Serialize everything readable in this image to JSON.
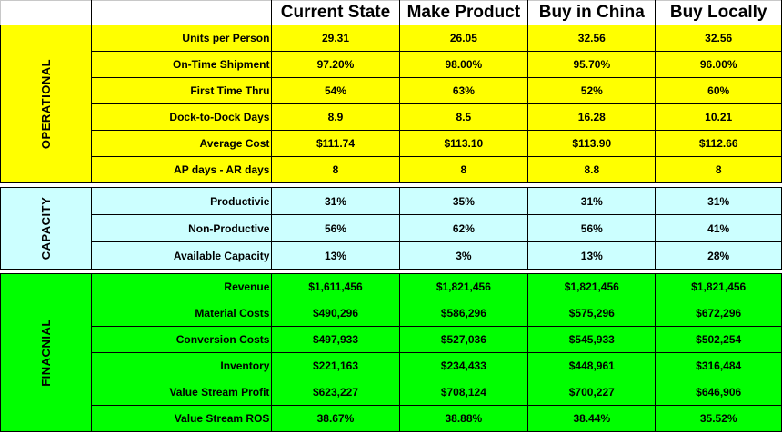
{
  "header": {
    "columns": [
      "Current State",
      "Make Product",
      "Buy in China",
      "Buy Locally"
    ]
  },
  "colors": {
    "operational": "#ffff00",
    "capacity": "#ccffff",
    "financial": "#00ff00"
  },
  "sections": [
    {
      "name": "OPERATIONAL",
      "rows": [
        {
          "label": "Units per Person",
          "values": [
            "29.31",
            "26.05",
            "32.56",
            "32.56"
          ]
        },
        {
          "label": "On-Time Shipment",
          "values": [
            "97.20%",
            "98.00%",
            "95.70%",
            "96.00%"
          ]
        },
        {
          "label": "First Time Thru",
          "values": [
            "54%",
            "63%",
            "52%",
            "60%"
          ]
        },
        {
          "label": "Dock-to-Dock Days",
          "values": [
            "8.9",
            "8.5",
            "16.28",
            "10.21"
          ]
        },
        {
          "label": "Average Cost",
          "values": [
            "$111.74",
            "$113.10",
            "$113.90",
            "$112.66"
          ]
        },
        {
          "label": "AP days - AR days",
          "values": [
            "8",
            "8",
            "8.8",
            "8"
          ]
        }
      ]
    },
    {
      "name": "CAPACITY",
      "rows": [
        {
          "label": "Productivie",
          "values": [
            "31%",
            "35%",
            "31%",
            "31%"
          ]
        },
        {
          "label": "Non-Productive",
          "values": [
            "56%",
            "62%",
            "56%",
            "41%"
          ]
        },
        {
          "label": "Available Capacity",
          "values": [
            "13%",
            "3%",
            "13%",
            "28%"
          ]
        }
      ]
    },
    {
      "name": "FINACNIAL",
      "rows": [
        {
          "label": "Revenue",
          "values": [
            "$1,611,456",
            "$1,821,456",
            "$1,821,456",
            "$1,821,456"
          ]
        },
        {
          "label": "Material Costs",
          "values": [
            "$490,296",
            "$586,296",
            "$575,296",
            "$672,296"
          ]
        },
        {
          "label": "Conversion Costs",
          "values": [
            "$497,933",
            "$527,036",
            "$545,933",
            "$502,254"
          ]
        },
        {
          "label": "Inventory",
          "values": [
            "$221,163",
            "$234,433",
            "$448,961",
            "$316,484"
          ]
        },
        {
          "label": "Value Stream Profit",
          "values": [
            "$623,227",
            "$708,124",
            "$700,227",
            "$646,906"
          ]
        },
        {
          "label": "Value Stream ROS",
          "values": [
            "38.67%",
            "38.88%",
            "38.44%",
            "35.52%"
          ]
        }
      ]
    }
  ]
}
